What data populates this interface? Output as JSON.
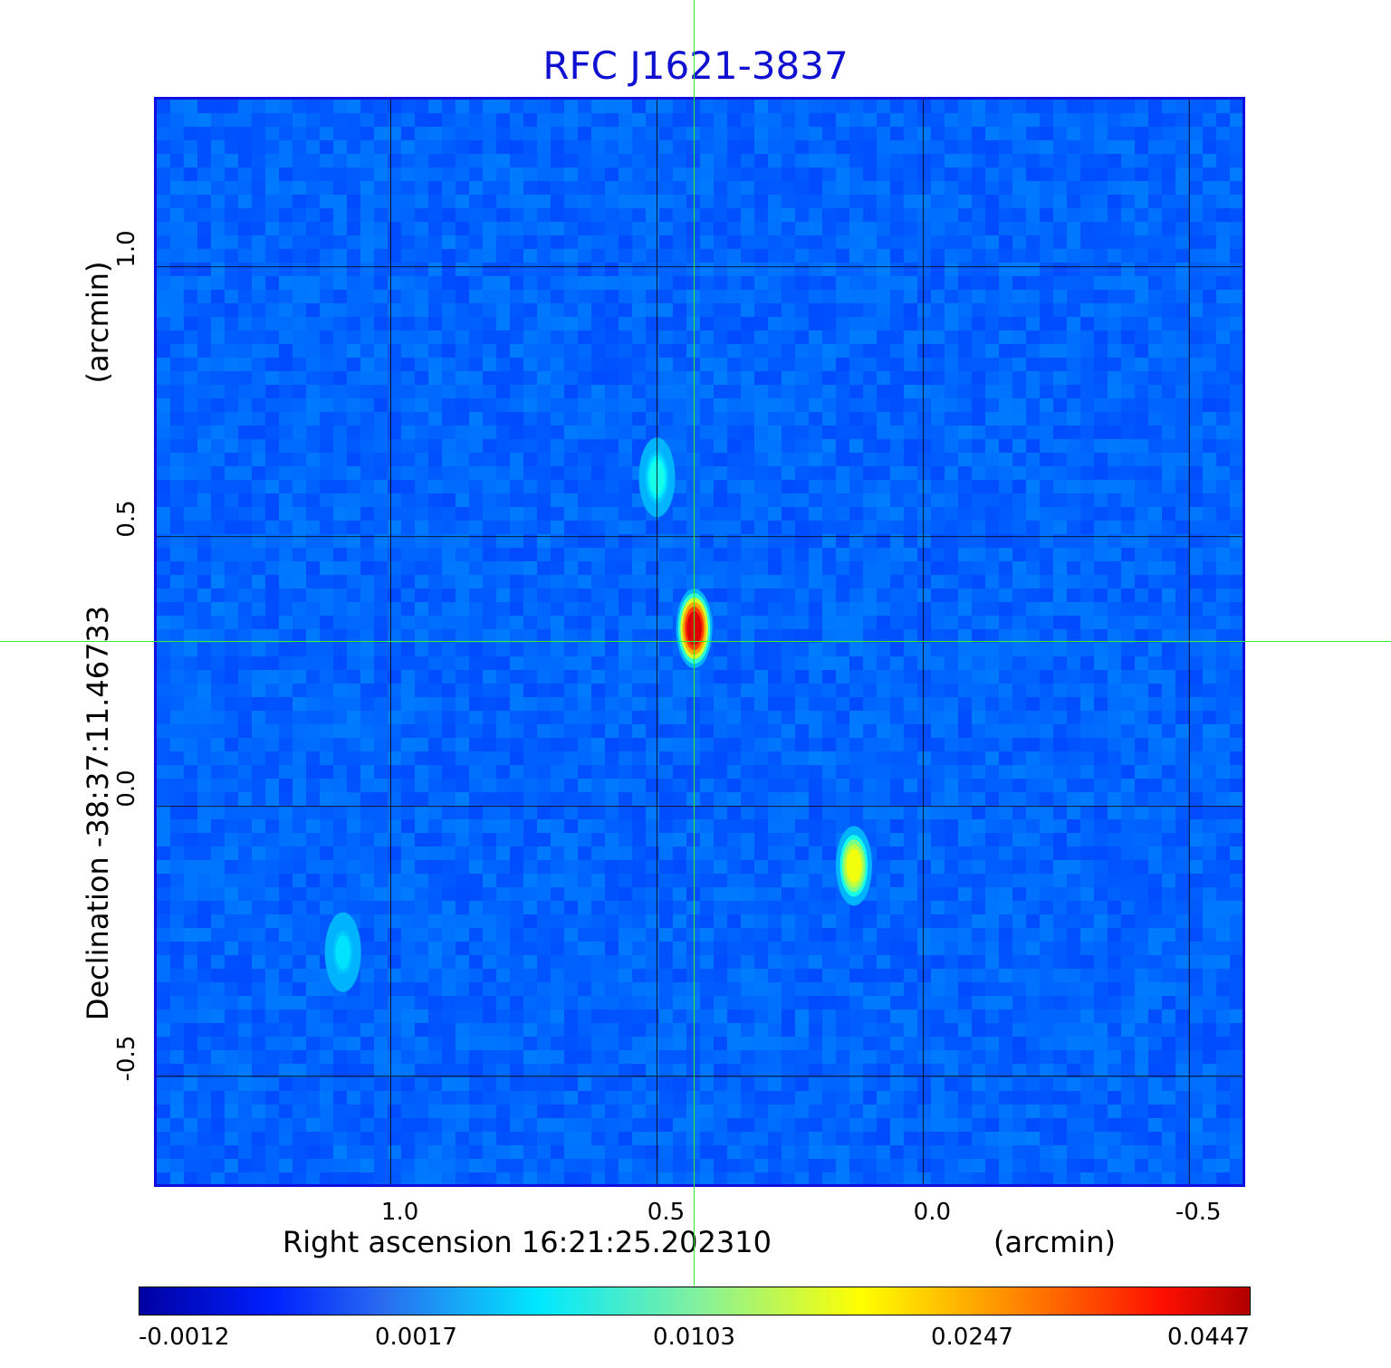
{
  "chart_data": {
    "type": "heatmap",
    "title": "RFC J1621-3837",
    "xlabel": "Right ascension  16:21:25.202310",
    "x_unit": "(arcmin)",
    "ylabel": "Declination  -38:37:11.46733",
    "y_unit": "(arcmin)",
    "x_ticks": [
      "1.0",
      "0.5",
      "0.0",
      "-0.5"
    ],
    "x_tick_values": [
      1.0,
      0.5,
      0.0,
      -0.5
    ],
    "y_ticks": [
      "1.0",
      "0.5",
      "0.0",
      "-0.5"
    ],
    "y_tick_values": [
      1.0,
      0.5,
      0.0,
      -0.5
    ],
    "xlim": [
      1.44,
      -0.6
    ],
    "ylim": [
      -0.7,
      1.31
    ],
    "grid": true,
    "crosshair": {
      "x": 0.43,
      "y": 0.31
    },
    "colormap": "jet",
    "colorbar_ticks": [
      "-0.0012",
      "0.0017",
      "0.0103",
      "0.0247",
      "0.0447"
    ],
    "colorbar_tick_values": [
      -0.0012,
      0.0017,
      0.0103,
      0.0247,
      0.0447
    ],
    "sources": [
      {
        "x": 0.43,
        "y": 0.33,
        "peak": 0.0447
      },
      {
        "x": 0.5,
        "y": 0.61,
        "peak": 0.008
      },
      {
        "x": 0.13,
        "y": -0.11,
        "peak": 0.02
      },
      {
        "x": 1.09,
        "y": -0.27,
        "peak": 0.006
      }
    ],
    "background_level": 0.0002
  }
}
